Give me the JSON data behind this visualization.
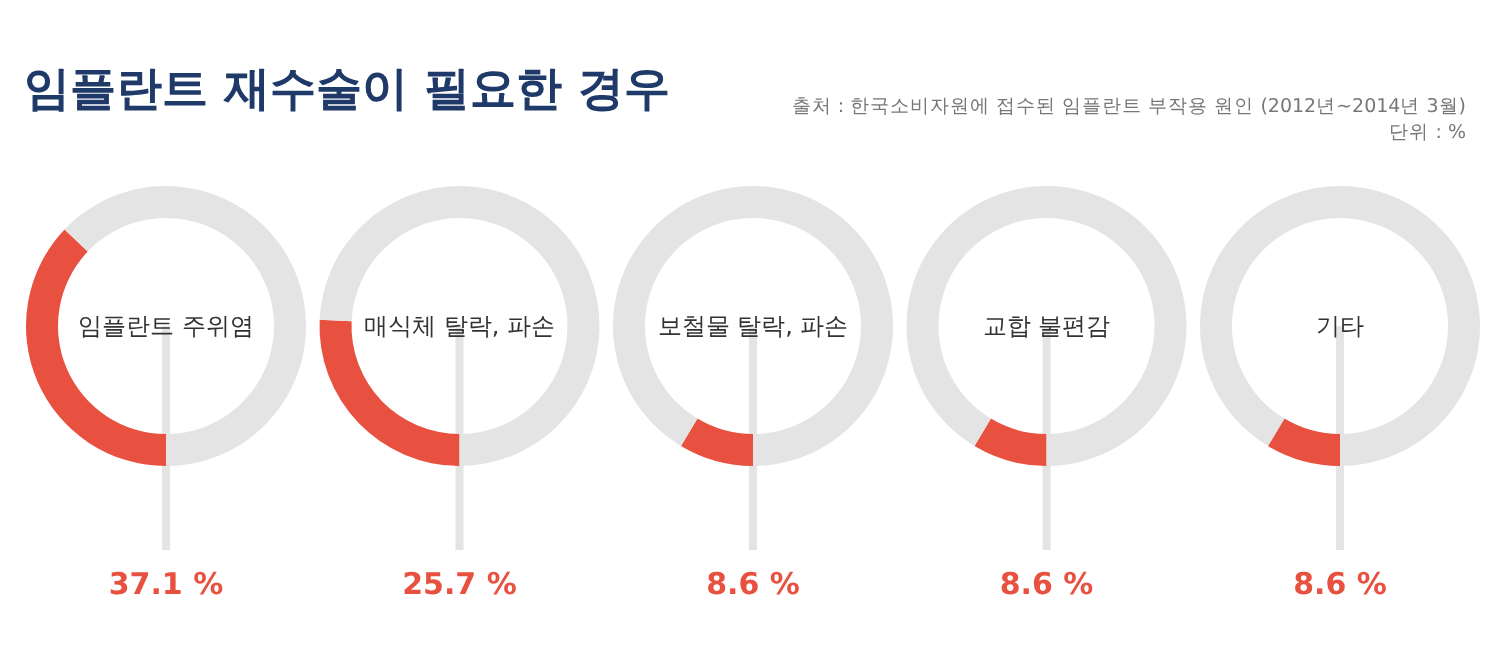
{
  "chart_data": [
    {
      "type": "donut",
      "title": "임플란트 재수술이 필요한 경우",
      "subtitle": "임플란트 주위염",
      "annotations": [
        "출처 : 한국소비자원에 접수된 임플란트 부작용 원인 (2012년~2014년 3월)",
        "단위 : %"
      ],
      "categories": [
        null,
        null
      ],
      "values": [
        37.1,
        62.9
      ],
      "colors": [
        "#e8503f",
        "#e4e4e4"
      ],
      "value_labels": [
        "37.1 %",
        null
      ]
    },
    {
      "type": "donut",
      "subtitle": "매식체 탈락, 파손",
      "categories": [
        null,
        null
      ],
      "values": [
        25.7,
        74.3
      ],
      "colors": [
        "#e8503f",
        "#e4e4e4"
      ],
      "value_labels": [
        "25.7 %",
        null
      ]
    },
    {
      "type": "donut",
      "subtitle": "보철물 탈락, 파손",
      "categories": [
        null,
        null
      ],
      "values": [
        8.6,
        91.4
      ],
      "colors": [
        "#e8503f",
        "#e4e4e4"
      ],
      "value_labels": [
        "8.6 %",
        null
      ]
    },
    {
      "type": "donut",
      "subtitle": "교합 불편감",
      "categories": [
        null,
        null
      ],
      "values": [
        8.6,
        91.4
      ],
      "colors": [
        "#e8503f",
        "#e4e4e4"
      ],
      "value_labels": [
        "8.6 %",
        null
      ]
    },
    {
      "type": "donut",
      "subtitle": "기타",
      "categories": [
        null,
        null
      ],
      "values": [
        8.6,
        91.4
      ],
      "colors": [
        "#e8503f",
        "#e4e4e4"
      ],
      "value_labels": [
        "8.6 %",
        null
      ]
    }
  ]
}
